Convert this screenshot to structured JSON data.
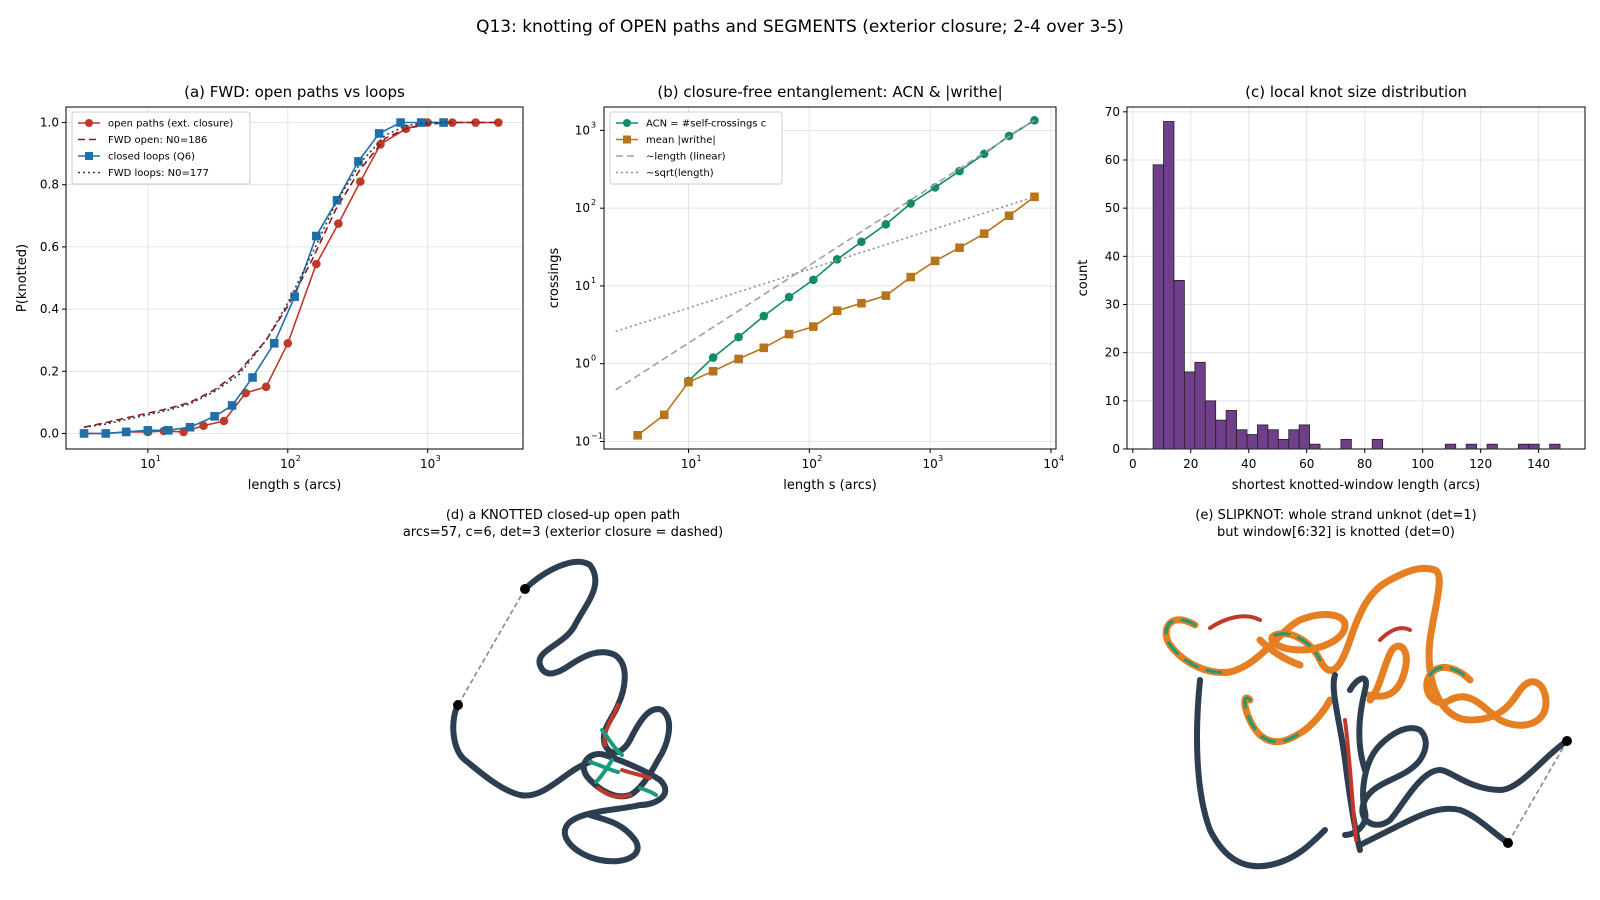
{
  "suptitle": "Q13: knotting of OPEN paths and SEGMENTS (exterior closure; 2-4 over 3-5)",
  "chart_data": [
    {
      "id": "a",
      "type": "line",
      "title": "(a) FWD: open paths vs loops",
      "xlabel": "length s (arcs)",
      "ylabel": "P(knotted)",
      "xscale": "log",
      "xlim": [
        2.6,
        4800
      ],
      "ylim": [
        -0.05,
        1.05
      ],
      "xticks": [
        {
          "v": 10,
          "label": "10"
        },
        {
          "v": 100,
          "label": "10"
        },
        {
          "v": 1000,
          "label": "10"
        }
      ],
      "xtick_exps": [
        "1",
        "2",
        "3"
      ],
      "yticks": [
        {
          "v": 0,
          "label": "0.0"
        },
        {
          "v": 0.2,
          "label": "0.2"
        },
        {
          "v": 0.4,
          "label": "0.4"
        },
        {
          "v": 0.6,
          "label": "0.6"
        },
        {
          "v": 0.8,
          "label": "0.8"
        },
        {
          "v": 1.0,
          "label": "1.0"
        }
      ],
      "grid": true,
      "legend_position": "top-left",
      "series": [
        {
          "name": "open paths (ext. closure)",
          "color": "#c0392b",
          "style": "solid",
          "marker": "circle",
          "x": [
            3.5,
            5,
            7,
            10,
            13,
            18,
            25,
            35,
            50,
            70,
            100,
            160,
            230,
            330,
            460,
            700,
            1000,
            1500,
            2200,
            3200
          ],
          "y": [
            0.0,
            0.0,
            0.005,
            0.005,
            0.008,
            0.005,
            0.025,
            0.04,
            0.13,
            0.15,
            0.29,
            0.545,
            0.675,
            0.81,
            0.93,
            0.98,
            1.0,
            1.0,
            1.0,
            1.0
          ]
        },
        {
          "name": "FWD open: N0=186",
          "color": "#8b1a1a",
          "style": "dashed",
          "marker": "none",
          "x": [
            3.5,
            5,
            7,
            10,
            14,
            20,
            30,
            45,
            70,
            100,
            150,
            220,
            330,
            500,
            700,
            1000,
            1500,
            2200,
            3200
          ],
          "y": [
            0.02,
            0.035,
            0.05,
            0.065,
            0.08,
            0.1,
            0.14,
            0.2,
            0.3,
            0.41,
            0.56,
            0.72,
            0.85,
            0.95,
            0.98,
            0.995,
            1.0,
            1.0,
            1.0
          ]
        },
        {
          "name": "closed loops (Q6)",
          "color": "#1f6fa8",
          "style": "solid",
          "marker": "square",
          "x": [
            3.5,
            5,
            7,
            10,
            14,
            20,
            30,
            40,
            56,
            80,
            112,
            160,
            225,
            320,
            450,
            640,
            900,
            1300
          ],
          "y": [
            0.0,
            0.0,
            0.005,
            0.01,
            0.01,
            0.02,
            0.055,
            0.09,
            0.18,
            0.29,
            0.44,
            0.635,
            0.75,
            0.875,
            0.965,
            1.0,
            1.0,
            1.0
          ]
        },
        {
          "name": "FWD loops: N0=177",
          "color": "#2c3e50",
          "style": "dotted",
          "marker": "none",
          "x": [
            3.5,
            5,
            7,
            10,
            14,
            20,
            30,
            45,
            70,
            100,
            150,
            220,
            330,
            500,
            700,
            1000,
            1500
          ],
          "y": [
            0.02,
            0.03,
            0.045,
            0.06,
            0.075,
            0.095,
            0.135,
            0.19,
            0.3,
            0.42,
            0.58,
            0.74,
            0.87,
            0.96,
            0.99,
            1.0,
            1.0
          ]
        }
      ]
    },
    {
      "id": "b",
      "type": "line",
      "title": "(b) closure-free entanglement: ACN & |writhe|",
      "xlabel": "length s (arcs)",
      "ylabel": "crossings",
      "xscale": "log",
      "yscale": "log",
      "xlim": [
        2,
        11000
      ],
      "ylim": [
        0.08,
        2000
      ],
      "xticks": [
        {
          "v": 10,
          "label": "10"
        },
        {
          "v": 100,
          "label": "10"
        },
        {
          "v": 1000,
          "label": "10"
        },
        {
          "v": 10000,
          "label": "10"
        }
      ],
      "xtick_exps": [
        "1",
        "2",
        "3",
        "4"
      ],
      "yticks": [
        {
          "v": 0.1,
          "label": "10"
        },
        {
          "v": 1,
          "label": "10"
        },
        {
          "v": 10,
          "label": "10"
        },
        {
          "v": 100,
          "label": "10"
        },
        {
          "v": 1000,
          "label": "10"
        }
      ],
      "ytick_exps": [
        "−1",
        "0",
        "1",
        "2",
        "3"
      ],
      "grid": true,
      "legend_position": "top-left",
      "series": [
        {
          "name": "ACN = #self-crossings c",
          "color": "#138a6b",
          "style": "solid",
          "marker": "circle",
          "x": [
            10,
            16,
            26,
            42,
            68,
            108,
            170,
            270,
            430,
            690,
            1100,
            1750,
            2800,
            4500,
            7300
          ],
          "y": [
            0.6,
            1.2,
            2.2,
            4.1,
            7.2,
            12,
            22,
            37,
            62,
            115,
            185,
            300,
            500,
            850,
            1350
          ]
        },
        {
          "name": "mean |writhe|",
          "color": "#b8741a",
          "style": "solid",
          "marker": "square",
          "x": [
            3.8,
            6.3,
            10,
            16,
            26,
            42,
            68,
            108,
            170,
            270,
            430,
            690,
            1100,
            1750,
            2800,
            4500,
            7300
          ],
          "y": [
            0.12,
            0.22,
            0.58,
            0.8,
            1.15,
            1.6,
            2.4,
            3.0,
            4.8,
            6.0,
            7.5,
            13,
            21,
            31,
            47,
            80,
            140
          ]
        },
        {
          "name": "~length (linear)",
          "color": "#a0a0a0",
          "style": "dashed",
          "marker": "none",
          "x": [
            2.5,
            7300
          ],
          "y": [
            0.46,
            1350
          ]
        },
        {
          "name": "~sqrt(length)",
          "color": "#909090",
          "style": "dotted",
          "marker": "none",
          "x": [
            2.5,
            7300
          ],
          "y": [
            2.6,
            140
          ]
        }
      ]
    },
    {
      "id": "c",
      "type": "bar",
      "title": "(c) local knot size distribution",
      "xlabel": "shortest knotted-window length (arcs)",
      "ylabel": "count",
      "xlim": [
        -2,
        156
      ],
      "ylim": [
        0,
        71
      ],
      "xticks": [
        {
          "v": 0,
          "label": "0"
        },
        {
          "v": 20,
          "label": "20"
        },
        {
          "v": 40,
          "label": "40"
        },
        {
          "v": 60,
          "label": "60"
        },
        {
          "v": 80,
          "label": "80"
        },
        {
          "v": 100,
          "label": "100"
        },
        {
          "v": 120,
          "label": "120"
        },
        {
          "v": 140,
          "label": "140"
        }
      ],
      "yticks": [
        {
          "v": 0,
          "label": "0"
        },
        {
          "v": 10,
          "label": "10"
        },
        {
          "v": 20,
          "label": "20"
        },
        {
          "v": 30,
          "label": "30"
        },
        {
          "v": 40,
          "label": "40"
        },
        {
          "v": 50,
          "label": "50"
        },
        {
          "v": 60,
          "label": "60"
        },
        {
          "v": 70,
          "label": "70"
        }
      ],
      "grid": true,
      "color": "#6f3f8a",
      "bin_start": 7,
      "bin_width": 3.6,
      "counts": [
        59,
        68,
        35,
        16,
        18,
        10,
        6,
        8,
        4,
        3,
        5,
        4,
        2,
        4,
        5,
        1,
        0,
        0,
        2,
        0,
        0,
        2,
        0,
        0,
        0,
        0,
        0,
        0,
        1,
        0,
        1,
        0,
        1,
        0,
        0,
        1,
        1,
        0,
        1
      ]
    }
  ],
  "panel_d": {
    "title_line1": "(d) a KNOTTED closed-up open path",
    "title_line2": "arcs=57, c=6, det=3 (exterior closure = dashed)"
  },
  "panel_e": {
    "title_line1": "(e) SLIPKNOT: whole strand unknot (det=1)",
    "title_line2": "but window[6:32] is knotted (det=0)"
  },
  "colors": {
    "strand": "#2c3e50",
    "over": "#c0392b",
    "under": "#1a9a78",
    "window": "#e67e22",
    "closure": "#888888"
  }
}
